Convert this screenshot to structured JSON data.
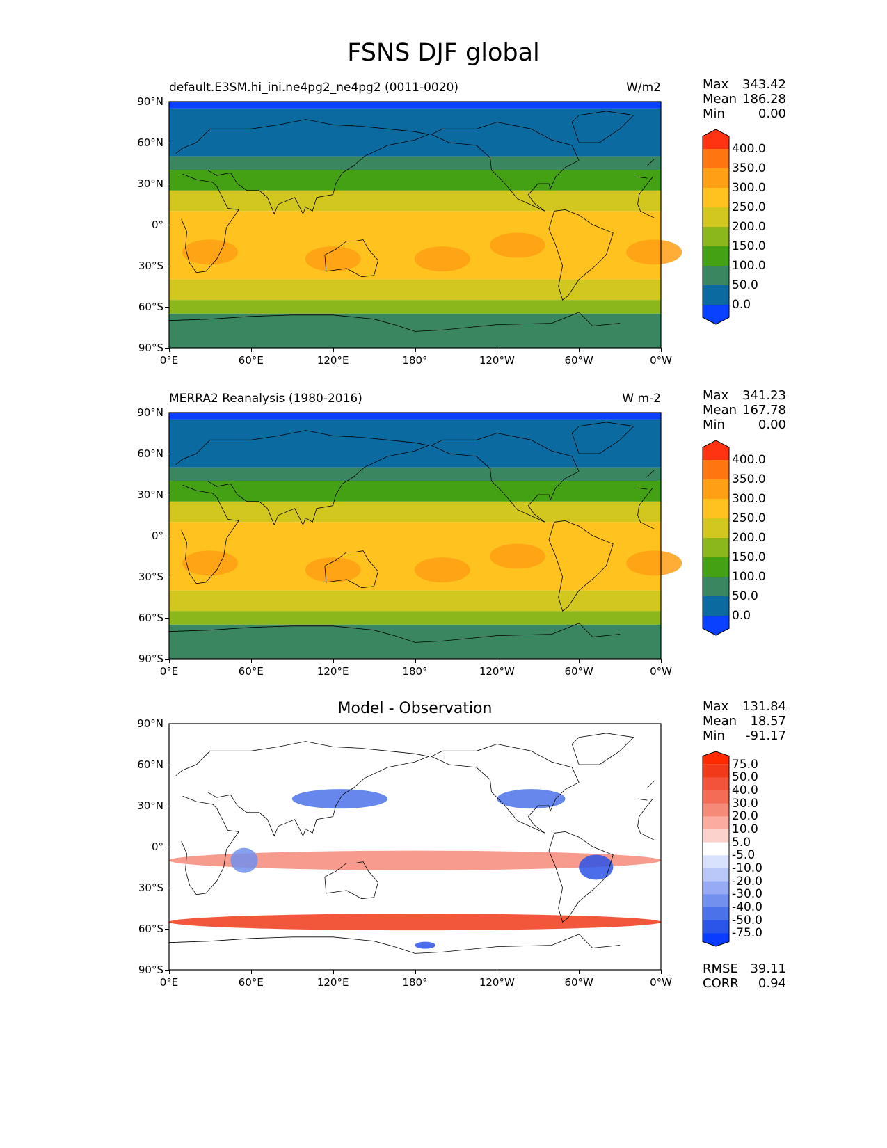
{
  "title": "FSNS DJF global",
  "panels": [
    {
      "id": "model",
      "left_label": "default.E3SM.hi_ini.ne4pg2_ne4pg2 (0011-0020)",
      "right_label": "W/m2",
      "stats": [
        {
          "name": "Max",
          "value": "343.42"
        },
        {
          "name": "Mean",
          "value": "186.28"
        },
        {
          "name": "Min",
          "value": "0.00"
        }
      ],
      "colorbar": {
        "labels": [
          "400.0",
          "350.0",
          "300.0",
          "250.0",
          "200.0",
          "150.0",
          "100.0",
          "50.0",
          "0.0"
        ],
        "colors": [
          "#ff3311",
          "#ff7711",
          "#ff9f14",
          "#ffc21f",
          "#d2c71f",
          "#8cb71c",
          "#45a114",
          "#3a8660",
          "#0b6aa0",
          "#0a40ff"
        ]
      }
    },
    {
      "id": "obs",
      "left_label": "MERRA2 Reanalysis (1980-2016)",
      "right_label": "W m-2",
      "stats": [
        {
          "name": "Max",
          "value": "341.23"
        },
        {
          "name": "Mean",
          "value": "167.78"
        },
        {
          "name": "Min",
          "value": "0.00"
        }
      ],
      "colorbar": {
        "labels": [
          "400.0",
          "350.0",
          "300.0",
          "250.0",
          "200.0",
          "150.0",
          "100.0",
          "50.0",
          "0.0"
        ],
        "colors": [
          "#ff3311",
          "#ff7711",
          "#ff9f14",
          "#ffc21f",
          "#d2c71f",
          "#8cb71c",
          "#45a114",
          "#3a8660",
          "#0b6aa0",
          "#0a40ff"
        ]
      }
    },
    {
      "id": "diff",
      "center_label": "Model - Observation",
      "stats": [
        {
          "name": "Max",
          "value": "131.84"
        },
        {
          "name": "Mean",
          "value": "18.57"
        },
        {
          "name": "Min",
          "value": "-91.17"
        }
      ],
      "extra_stats": [
        {
          "name": "RMSE",
          "value": "39.11"
        },
        {
          "name": "CORR",
          "value": "0.94"
        }
      ],
      "colorbar": {
        "labels": [
          "75.0",
          "50.0",
          "40.0",
          "30.0",
          "20.0",
          "10.0",
          "5.0",
          "-5.0",
          "-10.0",
          "-20.0",
          "-30.0",
          "-40.0",
          "-50.0",
          "-75.0"
        ],
        "colors": [
          "#ff2a00",
          "#f03a1a",
          "#f2533a",
          "#f46c55",
          "#f68a78",
          "#f9ac9f",
          "#fbd3cc",
          "#ffffff",
          "#d9e2fc",
          "#b9c8f8",
          "#96abf3",
          "#7290ee",
          "#4c72ea",
          "#2b54e8",
          "#0a3cff"
        ]
      }
    }
  ],
  "lat_ticks": [
    "90°N",
    "60°N",
    "30°N",
    "0°",
    "30°S",
    "60°S",
    "90°S"
  ],
  "lon_ticks": [
    "0°E",
    "60°E",
    "120°E",
    "180°",
    "120°W",
    "60°W",
    "0°W"
  ]
}
